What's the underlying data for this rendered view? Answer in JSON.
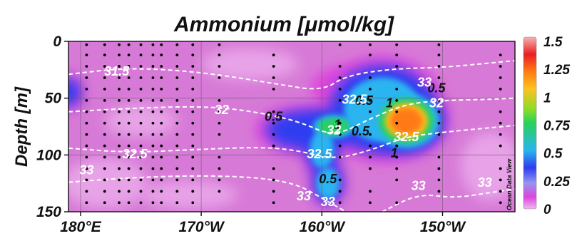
{
  "chart_data": {
    "type": "heatmap",
    "title": "Ammonium [μmol/kg]",
    "ylabel": "Depth [m]",
    "xlabel": "",
    "x_ticks": [
      {
        "label": "180°E",
        "value": -180
      },
      {
        "label": "170°W",
        "value": -170
      },
      {
        "label": "160°W",
        "value": -160
      },
      {
        "label": "150°W",
        "value": -150
      }
    ],
    "y_ticks": [
      {
        "label": "0",
        "value": 0
      },
      {
        "label": "50",
        "value": 50
      },
      {
        "label": "100",
        "value": 100
      },
      {
        "label": "150",
        "value": 150
      }
    ],
    "xlim": [
      -181,
      -144
    ],
    "ylim": [
      150,
      0
    ],
    "colorbar": {
      "ticks": [
        {
          "label": "1.5",
          "value": 1.5
        },
        {
          "label": "1.25",
          "value": 1.25
        },
        {
          "label": "1",
          "value": 1.0
        },
        {
          "label": "0.75",
          "value": 0.75
        },
        {
          "label": "0.5",
          "value": 0.5
        },
        {
          "label": "0.25",
          "value": 0.25
        },
        {
          "label": "0",
          "value": 0
        }
      ],
      "range": [
        0,
        1.5
      ]
    },
    "hotspots": [
      {
        "lon": -153,
        "depth": 70,
        "value": 1.2,
        "rlon": 3.2,
        "rdepth": 28
      },
      {
        "lon": -159,
        "depth": 75,
        "value": 0.85,
        "rlon": 2.2,
        "rdepth": 13
      },
      {
        "lon": -160,
        "depth": 95,
        "value": 0.55,
        "rlon": 1.5,
        "rdepth": 25
      },
      {
        "lon": -159.5,
        "depth": 125,
        "value": 0.6,
        "rlon": 1.4,
        "rdepth": 20
      },
      {
        "lon": -161,
        "depth": 78,
        "value": 0.35,
        "rlon": 4.5,
        "rdepth": 22
      },
      {
        "lon": -155,
        "depth": 60,
        "value": 0.5,
        "rlon": 5.0,
        "rdepth": 45
      },
      {
        "lon": -158,
        "depth": 40,
        "value": 0.18,
        "rlon": 3,
        "rdepth": 18
      },
      {
        "lon": -181,
        "depth": 45,
        "value": 0.3,
        "rlon": 1.3,
        "rdepth": 16
      }
    ],
    "contour_labels": [
      {
        "text": "0.5",
        "lon": -164,
        "depth": 70,
        "color": "black"
      },
      {
        "text": "1",
        "lon": -158.7,
        "depth": 77,
        "color": "black"
      },
      {
        "text": "0.5",
        "lon": -156.8,
        "depth": 83,
        "color": "black"
      },
      {
        "text": "0.5",
        "lon": -156.5,
        "depth": 56,
        "color": "black"
      },
      {
        "text": "1",
        "lon": -154.4,
        "depth": 58,
        "color": "black"
      },
      {
        "text": "0.5",
        "lon": -150.5,
        "depth": 45,
        "color": "black"
      },
      {
        "text": "1",
        "lon": -154,
        "depth": 102,
        "color": "black"
      },
      {
        "text": "0.5",
        "lon": -159.5,
        "depth": 125,
        "color": "black"
      },
      {
        "text": "31.5",
        "lon": -177,
        "depth": 30,
        "color": "white"
      },
      {
        "text": "32",
        "lon": -168.3,
        "depth": 64,
        "color": "white"
      },
      {
        "text": "32",
        "lon": -150.5,
        "depth": 58,
        "color": "white"
      },
      {
        "text": "33",
        "lon": -151.5,
        "depth": 40,
        "color": "white"
      },
      {
        "text": "32.5",
        "lon": -157.3,
        "depth": 55,
        "color": "white"
      },
      {
        "text": "32",
        "lon": -159,
        "depth": 82,
        "color": "white"
      },
      {
        "text": "32.5",
        "lon": -175.5,
        "depth": 103,
        "color": "white"
      },
      {
        "text": "33",
        "lon": -179.5,
        "depth": 117,
        "color": "white"
      },
      {
        "text": "32.5",
        "lon": -160.2,
        "depth": 103,
        "color": "white"
      },
      {
        "text": "32.5",
        "lon": -153,
        "depth": 88,
        "color": "white"
      },
      {
        "text": "33",
        "lon": -152,
        "depth": 131,
        "color": "white"
      },
      {
        "text": "33",
        "lon": -146.5,
        "depth": 128,
        "color": "white"
      },
      {
        "text": "33",
        "lon": -161.5,
        "depth": 140,
        "color": "white"
      },
      {
        "text": "33",
        "lon": -159.5,
        "depth": 145,
        "color": "white"
      }
    ],
    "isopycnals": [
      [
        [
          -181,
          29
        ],
        [
          -176,
          23
        ],
        [
          -170,
          27
        ],
        [
          -164,
          37
        ],
        [
          -160,
          44
        ],
        [
          -158,
          30
        ],
        [
          -154,
          24
        ],
        [
          -150,
          23
        ],
        [
          -146,
          19
        ],
        [
          -144,
          17
        ]
      ],
      [
        [
          -181,
          62
        ],
        [
          -176,
          59
        ],
        [
          -170,
          57
        ],
        [
          -166,
          61
        ],
        [
          -162,
          70
        ],
        [
          -159,
          84
        ],
        [
          -156,
          68
        ],
        [
          -153,
          55
        ],
        [
          -150,
          52
        ],
        [
          -146,
          51
        ],
        [
          -144,
          50
        ]
      ],
      [
        [
          -181,
          94
        ],
        [
          -176,
          98
        ],
        [
          -170,
          95
        ],
        [
          -165,
          93
        ],
        [
          -162,
          96
        ],
        [
          -159,
          104
        ],
        [
          -156,
          96
        ],
        [
          -153,
          84
        ],
        [
          -150,
          80
        ],
        [
          -146,
          76
        ],
        [
          -144,
          74
        ]
      ],
      [
        [
          -181,
          124
        ],
        [
          -176,
          120
        ],
        [
          -170,
          118
        ],
        [
          -165,
          120
        ],
        [
          -162,
          126
        ],
        [
          -160,
          138
        ],
        [
          -158,
          150
        ]
      ],
      [
        [
          -155,
          150
        ],
        [
          -152,
          134
        ],
        [
          -149,
          138
        ],
        [
          -146,
          133
        ],
        [
          -144,
          130
        ]
      ]
    ],
    "station_lons": [
      -179.5,
      -178,
      -176.8,
      -176,
      -175,
      -174,
      -173.3,
      -172,
      -170.7,
      -168.5,
      -164,
      -158.5,
      -156,
      -153.8,
      -150.3,
      -145.2
    ],
    "watermark": "Ocean Data View"
  }
}
